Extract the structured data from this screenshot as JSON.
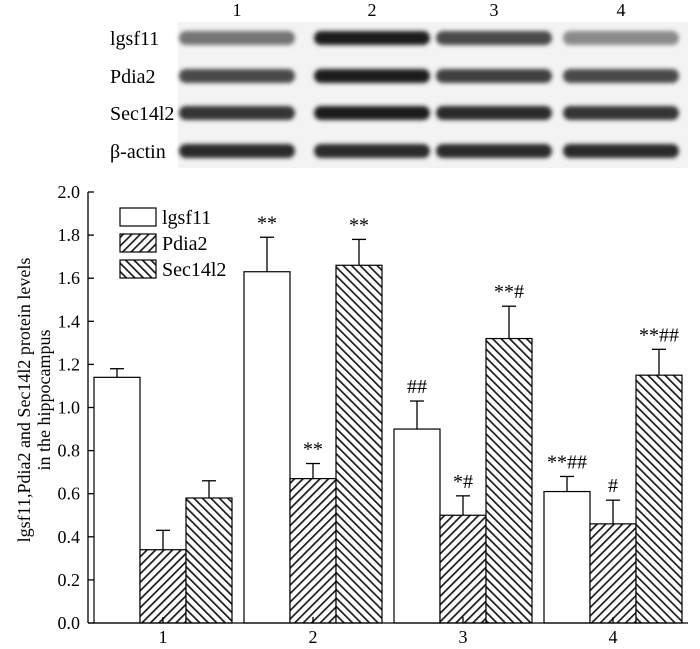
{
  "blot": {
    "lanes": [
      "1",
      "2",
      "3",
      "4"
    ],
    "rows": [
      {
        "label": "lgsf11",
        "intensity": [
          0.55,
          0.95,
          0.75,
          0.45
        ]
      },
      {
        "label": "Pdia2",
        "intensity": [
          0.75,
          0.95,
          0.8,
          0.75
        ]
      },
      {
        "label": "Sec14l2",
        "intensity": [
          0.85,
          0.95,
          0.9,
          0.85
        ]
      },
      {
        "label": "β-actin",
        "intensity": [
          0.9,
          0.9,
          0.9,
          0.9
        ]
      }
    ]
  },
  "chart_data": {
    "type": "bar",
    "title": "",
    "xlabel": "",
    "ylabel_lines": [
      "lgsf11,Pdia2 and Sec14l2 protein levels",
      "in the hippocampus"
    ],
    "ylim": [
      0,
      2.0
    ],
    "yticks": [
      "0.0",
      "0.2",
      "0.4",
      "0.6",
      "0.8",
      "1.0",
      "1.2",
      "1.4",
      "1.6",
      "1.8",
      "2.0"
    ],
    "categories": [
      "1",
      "2",
      "3",
      "4"
    ],
    "legend_position": "top-left",
    "series": [
      {
        "name": "lgsf11",
        "pattern": "open",
        "values": [
          1.14,
          1.63,
          0.9,
          0.61
        ],
        "errors": [
          0.04,
          0.16,
          0.13,
          0.07
        ],
        "annotations": [
          "",
          "**",
          "##",
          "**##"
        ]
      },
      {
        "name": "Pdia2",
        "pattern": "forward-hatch",
        "values": [
          0.34,
          0.67,
          0.5,
          0.46
        ],
        "errors": [
          0.09,
          0.07,
          0.09,
          0.11
        ],
        "annotations": [
          "",
          "**",
          "*#",
          "#"
        ]
      },
      {
        "name": "Sec14l2",
        "pattern": "back-hatch",
        "values": [
          0.58,
          1.66,
          1.32,
          1.15
        ],
        "errors": [
          0.08,
          0.12,
          0.15,
          0.12
        ],
        "annotations": [
          "",
          "**",
          "**#",
          "**##"
        ]
      }
    ]
  }
}
